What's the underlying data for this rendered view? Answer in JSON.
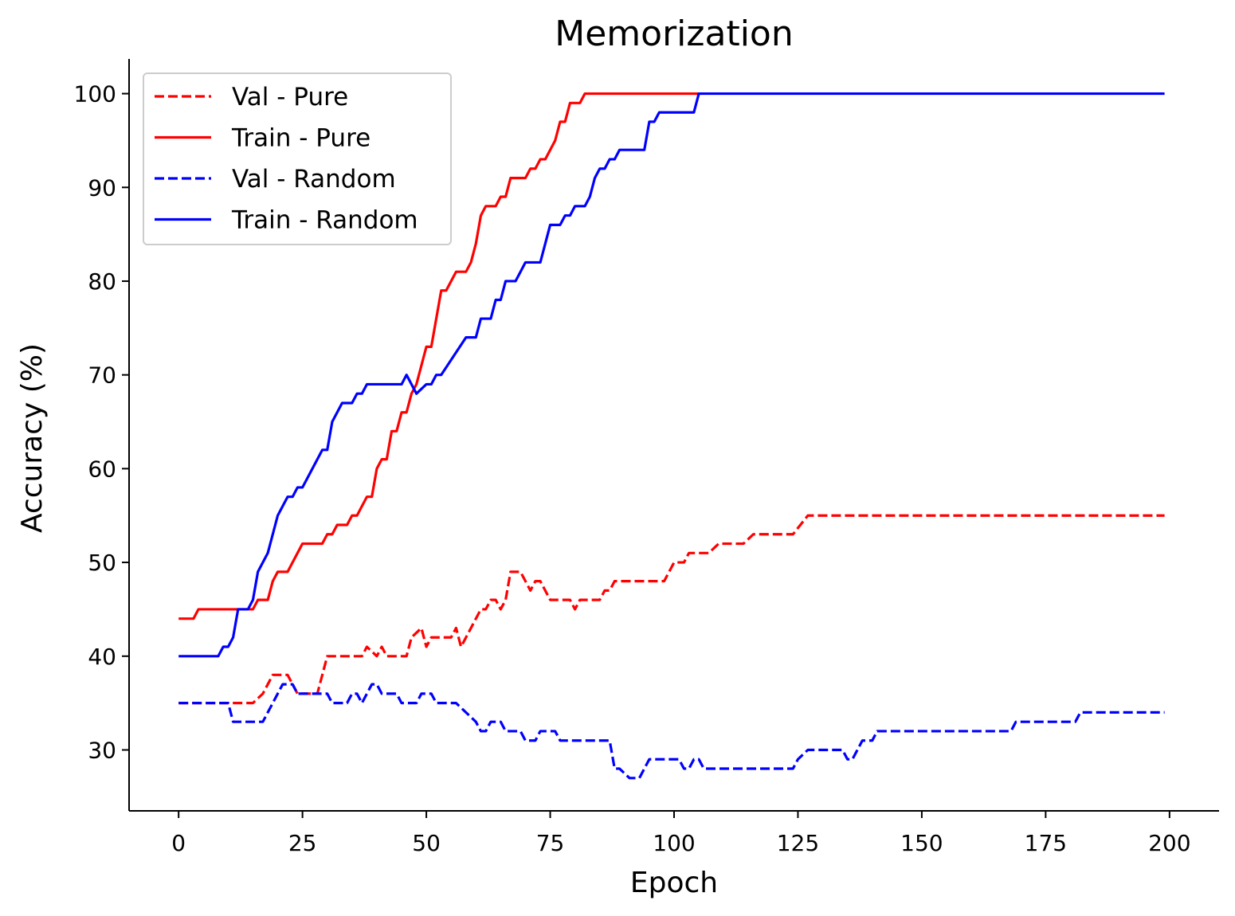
{
  "chart_data": {
    "type": "line",
    "title": "Memorization",
    "xlabel": "Epoch",
    "ylabel": "Accuracy (%)",
    "xlim": [
      -10,
      210
    ],
    "ylim": [
      23.5,
      103.7
    ],
    "xticks": [
      0,
      25,
      50,
      75,
      100,
      125,
      150,
      175,
      200
    ],
    "yticks": [
      30,
      40,
      50,
      60,
      70,
      80,
      90,
      100
    ],
    "legend_position": "upper-left",
    "series": [
      {
        "name": "Val - Pure",
        "color": "#ff0000",
        "style": "dashed",
        "points": [
          [
            0,
            35
          ],
          [
            10,
            35
          ],
          [
            15,
            35
          ],
          [
            17,
            36
          ],
          [
            19,
            38
          ],
          [
            22,
            38
          ],
          [
            24,
            36
          ],
          [
            28,
            36
          ],
          [
            30,
            40
          ],
          [
            37,
            40
          ],
          [
            38,
            41
          ],
          [
            40,
            40
          ],
          [
            41,
            41
          ],
          [
            42,
            40
          ],
          [
            46,
            40
          ],
          [
            47,
            42
          ],
          [
            49,
            43
          ],
          [
            50,
            41
          ],
          [
            51,
            42
          ],
          [
            55,
            42
          ],
          [
            56,
            43
          ],
          [
            57,
            41
          ],
          [
            58,
            42
          ],
          [
            60,
            44
          ],
          [
            61,
            45
          ],
          [
            62,
            45
          ],
          [
            63,
            46
          ],
          [
            64,
            46
          ],
          [
            65,
            45
          ],
          [
            66,
            46
          ],
          [
            67,
            49
          ],
          [
            69,
            49
          ],
          [
            71,
            47
          ],
          [
            72,
            48
          ],
          [
            73,
            48
          ],
          [
            75,
            46
          ],
          [
            79,
            46
          ],
          [
            80,
            45
          ],
          [
            81,
            46
          ],
          [
            85,
            46
          ],
          [
            86,
            47
          ],
          [
            87,
            47
          ],
          [
            88,
            48
          ],
          [
            98,
            48
          ],
          [
            100,
            50
          ],
          [
            102,
            50
          ],
          [
            103,
            51
          ],
          [
            107,
            51
          ],
          [
            109,
            52
          ],
          [
            114,
            52
          ],
          [
            116,
            53
          ],
          [
            124,
            53
          ],
          [
            127,
            55
          ],
          [
            199,
            55
          ]
        ]
      },
      {
        "name": "Train - Pure",
        "color": "#ff0000",
        "style": "solid",
        "points": [
          [
            0,
            44
          ],
          [
            3,
            44
          ],
          [
            4,
            45
          ],
          [
            10,
            45
          ],
          [
            15,
            45
          ],
          [
            16,
            46
          ],
          [
            18,
            46
          ],
          [
            19,
            48
          ],
          [
            20,
            49
          ],
          [
            22,
            49
          ],
          [
            24,
            51
          ],
          [
            25,
            52
          ],
          [
            29,
            52
          ],
          [
            30,
            53
          ],
          [
            31,
            53
          ],
          [
            32,
            54
          ],
          [
            34,
            54
          ],
          [
            35,
            55
          ],
          [
            36,
            55
          ],
          [
            38,
            57
          ],
          [
            39,
            57
          ],
          [
            40,
            60
          ],
          [
            41,
            61
          ],
          [
            42,
            61
          ],
          [
            43,
            64
          ],
          [
            44,
            64
          ],
          [
            45,
            66
          ],
          [
            46,
            66
          ],
          [
            47,
            68
          ],
          [
            48,
            69
          ],
          [
            50,
            73
          ],
          [
            51,
            73
          ],
          [
            52,
            76
          ],
          [
            53,
            79
          ],
          [
            54,
            79
          ],
          [
            56,
            81
          ],
          [
            58,
            81
          ],
          [
            59,
            82
          ],
          [
            60,
            84
          ],
          [
            61,
            87
          ],
          [
            62,
            88
          ],
          [
            64,
            88
          ],
          [
            65,
            89
          ],
          [
            66,
            89
          ],
          [
            67,
            91
          ],
          [
            70,
            91
          ],
          [
            71,
            92
          ],
          [
            72,
            92
          ],
          [
            73,
            93
          ],
          [
            74,
            93
          ],
          [
            76,
            95
          ],
          [
            77,
            97
          ],
          [
            78,
            97
          ],
          [
            79,
            99
          ],
          [
            81,
            99
          ],
          [
            82,
            100
          ],
          [
            105,
            100
          ]
        ]
      },
      {
        "name": "Val - Random",
        "color": "#0000ff",
        "style": "dashed",
        "points": [
          [
            0,
            35
          ],
          [
            10,
            35
          ],
          [
            11,
            33
          ],
          [
            17,
            33
          ],
          [
            19,
            35
          ],
          [
            21,
            37
          ],
          [
            23,
            37
          ],
          [
            24,
            36
          ],
          [
            30,
            36
          ],
          [
            31,
            35
          ],
          [
            34,
            35
          ],
          [
            35,
            36
          ],
          [
            36,
            36
          ],
          [
            37,
            35
          ],
          [
            38,
            36
          ],
          [
            39,
            37
          ],
          [
            40,
            37
          ],
          [
            41,
            36
          ],
          [
            44,
            36
          ],
          [
            45,
            35
          ],
          [
            48,
            35
          ],
          [
            49,
            36
          ],
          [
            51,
            36
          ],
          [
            52,
            35
          ],
          [
            56,
            35
          ],
          [
            58,
            34
          ],
          [
            60,
            33
          ],
          [
            61,
            32
          ],
          [
            62,
            32
          ],
          [
            63,
            33
          ],
          [
            65,
            33
          ],
          [
            66,
            32
          ],
          [
            69,
            32
          ],
          [
            70,
            31
          ],
          [
            72,
            31
          ],
          [
            73,
            32
          ],
          [
            76,
            32
          ],
          [
            77,
            31
          ],
          [
            87,
            31
          ],
          [
            88,
            28
          ],
          [
            89,
            28
          ],
          [
            91,
            27
          ],
          [
            93,
            27
          ],
          [
            95,
            29
          ],
          [
            101,
            29
          ],
          [
            102,
            28
          ],
          [
            103,
            28
          ],
          [
            104,
            29
          ],
          [
            105,
            29
          ],
          [
            106,
            28
          ],
          [
            124,
            28
          ],
          [
            125,
            29
          ],
          [
            127,
            30
          ],
          [
            134,
            30
          ],
          [
            135,
            29
          ],
          [
            136,
            29
          ],
          [
            138,
            31
          ],
          [
            140,
            31
          ],
          [
            141,
            32
          ],
          [
            168,
            32
          ],
          [
            169,
            33
          ],
          [
            181,
            33
          ],
          [
            182,
            34
          ],
          [
            199,
            34
          ]
        ]
      },
      {
        "name": "Train - Random",
        "color": "#0000ff",
        "style": "solid",
        "points": [
          [
            0,
            40
          ],
          [
            8,
            40
          ],
          [
            9,
            41
          ],
          [
            10,
            41
          ],
          [
            11,
            42
          ],
          [
            12,
            45
          ],
          [
            14,
            45
          ],
          [
            15,
            46
          ],
          [
            16,
            49
          ],
          [
            18,
            51
          ],
          [
            20,
            55
          ],
          [
            21,
            56
          ],
          [
            22,
            57
          ],
          [
            23,
            57
          ],
          [
            24,
            58
          ],
          [
            25,
            58
          ],
          [
            29,
            62
          ],
          [
            30,
            62
          ],
          [
            31,
            65
          ],
          [
            33,
            67
          ],
          [
            35,
            67
          ],
          [
            36,
            68
          ],
          [
            37,
            68
          ],
          [
            38,
            69
          ],
          [
            45,
            69
          ],
          [
            46,
            70
          ],
          [
            48,
            68
          ],
          [
            50,
            69
          ],
          [
            51,
            69
          ],
          [
            52,
            70
          ],
          [
            53,
            70
          ],
          [
            58,
            74
          ],
          [
            60,
            74
          ],
          [
            61,
            76
          ],
          [
            63,
            76
          ],
          [
            64,
            78
          ],
          [
            65,
            78
          ],
          [
            66,
            80
          ],
          [
            68,
            80
          ],
          [
            69,
            81
          ],
          [
            70,
            82
          ],
          [
            73,
            82
          ],
          [
            74,
            84
          ],
          [
            75,
            86
          ],
          [
            77,
            86
          ],
          [
            78,
            87
          ],
          [
            79,
            87
          ],
          [
            80,
            88
          ],
          [
            82,
            88
          ],
          [
            83,
            89
          ],
          [
            84,
            91
          ],
          [
            85,
            92
          ],
          [
            86,
            92
          ],
          [
            87,
            93
          ],
          [
            88,
            93
          ],
          [
            89,
            94
          ],
          [
            94,
            94
          ],
          [
            95,
            97
          ],
          [
            96,
            97
          ],
          [
            97,
            98
          ],
          [
            104,
            98
          ],
          [
            105,
            100
          ],
          [
            199,
            100
          ]
        ]
      }
    ]
  }
}
